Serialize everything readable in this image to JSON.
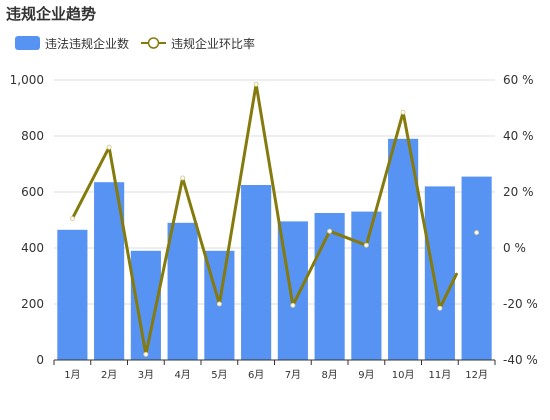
{
  "page": {
    "title": "违规企业趋势"
  },
  "legend": {
    "bar_label": "违法违规企业数",
    "line_label": "违规企业环比率"
  },
  "colors": {
    "bar": "#5793f3",
    "line": "#857a0c",
    "grid": "#dddddd",
    "axis": "#333333"
  },
  "chart_data": {
    "type": "bar",
    "title": "违规企业趋势",
    "categories": [
      "1月",
      "2月",
      "3月",
      "4月",
      "5月",
      "6月",
      "7月",
      "8月",
      "9月",
      "10月",
      "11月",
      "12月"
    ],
    "series": [
      {
        "name": "违法违规企业数",
        "type": "bar",
        "axis": "left",
        "values": [
          465,
          635,
          390,
          490,
          390,
          625,
          495,
          525,
          530,
          790,
          620,
          655
        ]
      },
      {
        "name": "违规企业环比率",
        "type": "line",
        "axis": "right",
        "values": [
          10.5,
          36,
          -38,
          25,
          -20,
          58.5,
          -20.5,
          6,
          1,
          48.5,
          -21.5,
          5.5
        ]
      }
    ],
    "y_left": {
      "min": 0,
      "max": 1000,
      "ticks": [
        0,
        200,
        400,
        600,
        800,
        1000
      ],
      "tick_labels": [
        "0",
        "200",
        "400",
        "600",
        "800",
        "1,000"
      ]
    },
    "y_right": {
      "min": -40,
      "max": 60,
      "ticks": [
        -40,
        -20,
        0,
        20,
        40,
        60
      ],
      "tick_labels": [
        "-40 %",
        "-20 %",
        "0 %",
        "20 %",
        "40 %",
        "60 %"
      ]
    },
    "grid": true,
    "legend_position": "top-left"
  }
}
